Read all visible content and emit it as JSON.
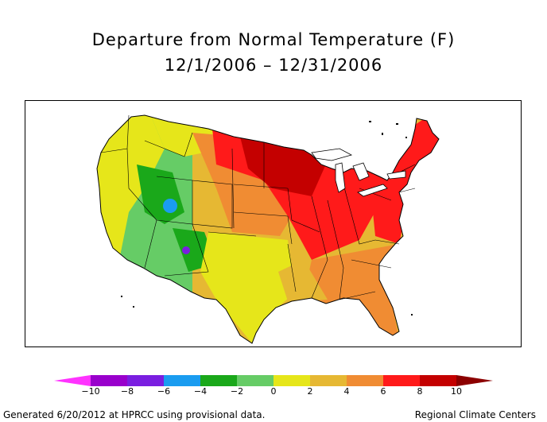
{
  "title": {
    "line1": "Departure from Normal Temperature (F)",
    "line2": "12/1/2006 – 12/31/2006"
  },
  "map": {
    "region": "contiguous-us",
    "colors": {
      "le_-10": "#ff33ff",
      "-10_-8": "#9900cc",
      "-8_-6": "#7a1ee0",
      "-6_-4": "#1a9cf0",
      "-4_-2": "#1aa81a",
      "-2_0": "#66cc66",
      "0_2": "#e6e61a",
      "2_4": "#e6b833",
      "4_6": "#f08c33",
      "6_8": "#ff1a1a",
      "8_10": "#c40000",
      "ge_10": "#8c0000"
    },
    "regional_departures": {
      "pacific_northwest": "0 to 2",
      "great_basin_rockies": "-2 to 0",
      "central_utah_colorado": "-4 to -2",
      "new_mexico_spot": "-8 to -6",
      "northern_plains": "4 to 6",
      "upper_midwest_minnesota": "8 to 10",
      "great_lakes": "6 to 8",
      "ohio_valley": "6 to 8",
      "northeast_new_england": "6 to 8",
      "southeast": "4 to 6",
      "florida": "4 to 6",
      "texas_gulf": "0 to 2",
      "southern_plains": "2 to 4"
    }
  },
  "legend": {
    "ticks": [
      "−10",
      "−8",
      "−6",
      "−4",
      "−2",
      "0",
      "2",
      "4",
      "6",
      "8",
      "10"
    ],
    "bins": [
      "#9900cc",
      "#7a1ee0",
      "#1a9cf0",
      "#1aa81a",
      "#66cc66",
      "#e6e61a",
      "#e6b833",
      "#f08c33",
      "#ff1a1a",
      "#c40000"
    ],
    "low_arrow": "#ff33ff",
    "high_arrow": "#8c0000"
  },
  "footer": {
    "left": "Generated 6/20/2012 at HPRCC using provisional data.",
    "right": "Regional Climate Centers"
  }
}
